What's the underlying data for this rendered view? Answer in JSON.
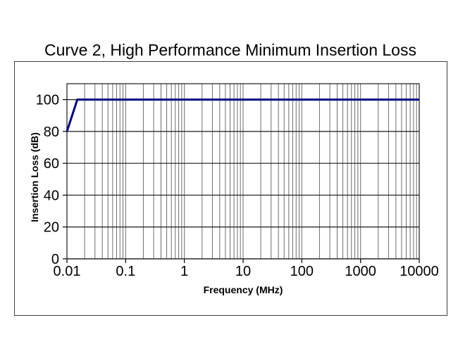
{
  "window": {
    "background_color": "#ffffff",
    "border_color": "#3f3f3f"
  },
  "chart_data": {
    "type": "line",
    "title": "Curve 2, High Performance Minimum Insertion Loss",
    "xlabel": "Frequency (MHz)",
    "ylabel": "Insertion Loss (dB)",
    "x_scale": "log",
    "y_scale": "linear",
    "xlim": [
      0.01,
      10000
    ],
    "ylim": [
      0,
      110
    ],
    "x_ticks": [
      0.01,
      0.1,
      1,
      10,
      100,
      1000,
      10000
    ],
    "x_tick_labels": [
      "0.01",
      "0.1",
      "1",
      "10",
      "100",
      "1000",
      "10000"
    ],
    "y_ticks": [
      0,
      20,
      40,
      60,
      80,
      100
    ],
    "y_tick_labels": [
      "0",
      "20",
      "40",
      "60",
      "80",
      "100"
    ],
    "grid": {
      "horizontal": "major",
      "vertical": "log major + minor (2-9 per decade)",
      "horizontal_color": "#1a1a1a",
      "vertical_color": "#6e6e6e"
    },
    "legend": "none",
    "axis_color": "#000000",
    "series": [
      {
        "name": "Curve 2 minimum insertion loss",
        "color": "#000085",
        "width": 3,
        "points": [
          [
            0.01,
            80
          ],
          [
            0.015,
            100
          ],
          [
            10000,
            100
          ]
        ]
      }
    ]
  }
}
